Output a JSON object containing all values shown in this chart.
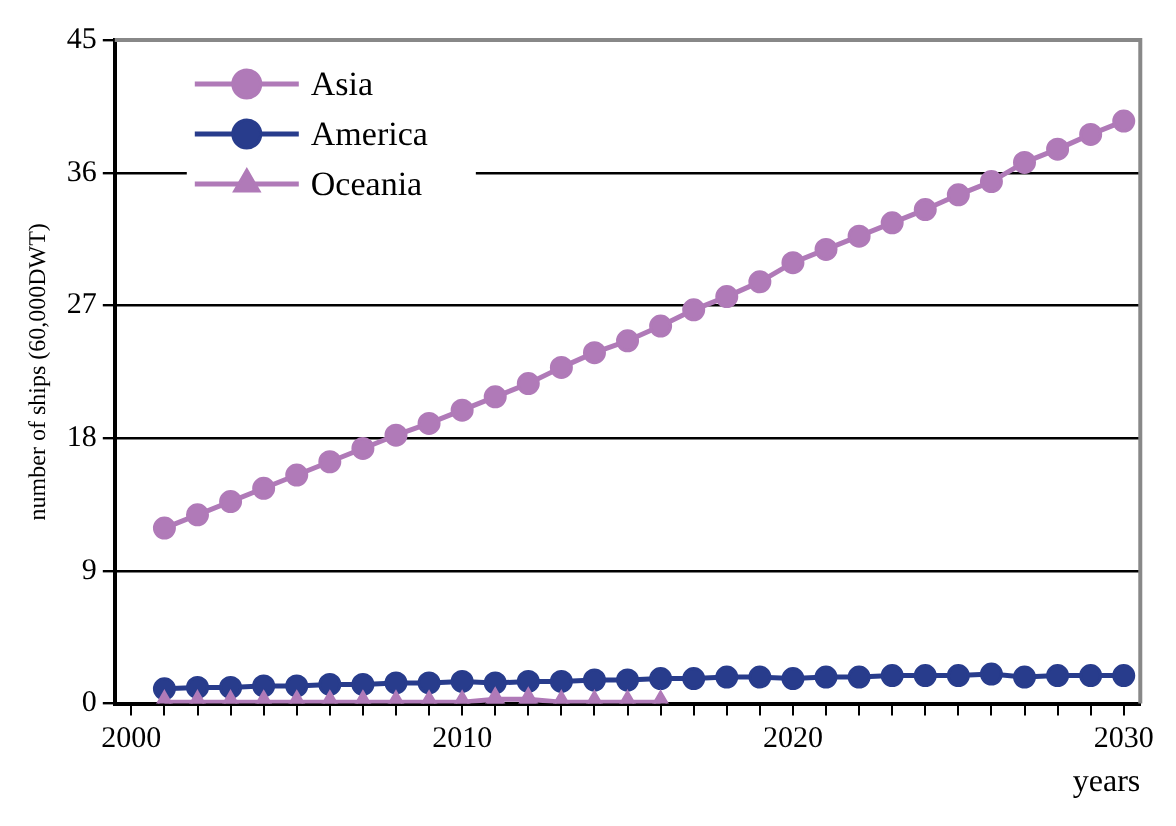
{
  "chart_data": {
    "type": "line",
    "xlabel": "years",
    "ylabel": "number of ships (60,000DWT)",
    "xlim": [
      1999.5,
      2030.5
    ],
    "xticks": [
      2000,
      {
        "value": 2001,
        "label": null
      },
      {
        "value": 2002,
        "label": null
      },
      {
        "value": 2003,
        "label": null
      },
      {
        "value": 2004,
        "label": null
      },
      {
        "value": 2005,
        "label": null
      },
      {
        "value": 2006,
        "label": null
      },
      {
        "value": 2007,
        "label": null
      },
      {
        "value": 2008,
        "label": null
      },
      {
        "value": 2009,
        "label": null
      },
      2010,
      {
        "value": 2011,
        "label": null
      },
      {
        "value": 2012,
        "label": null
      },
      {
        "value": 2013,
        "label": null
      },
      {
        "value": 2014,
        "label": null
      },
      {
        "value": 2015,
        "label": null
      },
      {
        "value": 2016,
        "label": null
      },
      {
        "value": 2017,
        "label": null
      },
      {
        "value": 2018,
        "label": null
      },
      {
        "value": 2019,
        "label": null
      },
      2020,
      {
        "value": 2021,
        "label": null
      },
      {
        "value": 2022,
        "label": null
      },
      {
        "value": 2023,
        "label": null
      },
      {
        "value": 2024,
        "label": null
      },
      {
        "value": 2025,
        "label": null
      },
      {
        "value": 2026,
        "label": null
      },
      {
        "value": 2027,
        "label": null
      },
      {
        "value": 2028,
        "label": null
      },
      {
        "value": 2029,
        "label": null
      },
      2030
    ],
    "ylim": [
      0,
      45
    ],
    "yticks": [
      0,
      9,
      18,
      27,
      36,
      45
    ],
    "grid": "y",
    "legend": "top left",
    "line_style": "solid",
    "x": [
      2001,
      2002,
      2003,
      2004,
      2005,
      2006,
      2007,
      2008,
      2009,
      2010,
      2011,
      2012,
      2013,
      2014,
      2015,
      2016,
      2017,
      2018,
      2019,
      2020,
      2021,
      2022,
      2023,
      2024,
      2025,
      2026,
      2027,
      2028,
      2029,
      2030
    ],
    "series": [
      {
        "name": "Asia",
        "color": "#b07ab8",
        "marker": "circle",
        "values": [
          11.9,
          12.8,
          13.7,
          14.6,
          15.5,
          16.4,
          17.3,
          18.2,
          19.0,
          19.9,
          20.8,
          21.7,
          22.8,
          23.8,
          24.6,
          25.6,
          26.7,
          27.6,
          28.6,
          29.9,
          30.8,
          31.7,
          32.6,
          33.5,
          34.5,
          35.4,
          36.7,
          37.6,
          38.6,
          39.5
        ]
      },
      {
        "name": "America",
        "color": "#283c8c",
        "marker": "circle",
        "values": [
          1.0,
          1.1,
          1.1,
          1.2,
          1.2,
          1.3,
          1.3,
          1.4,
          1.4,
          1.5,
          1.4,
          1.5,
          1.5,
          1.6,
          1.6,
          1.7,
          1.7,
          1.8,
          1.8,
          1.7,
          1.8,
          1.8,
          1.9,
          1.9,
          1.9,
          2.0,
          1.8,
          1.9,
          1.9,
          1.9
        ]
      },
      {
        "name": "Oceania",
        "color": "#b07ab8",
        "marker": "triangle",
        "x": [
          2001,
          2002,
          2003,
          2004,
          2005,
          2006,
          2007,
          2008,
          2009,
          2010,
          2011,
          2012,
          2013,
          2014,
          2015,
          2016
        ],
        "values": [
          0.1,
          0.1,
          0.1,
          0.1,
          0.1,
          0.1,
          0.1,
          0.1,
          0.1,
          0.1,
          0.3,
          0.3,
          0.1,
          0.1,
          0.1,
          0.1
        ]
      }
    ]
  }
}
